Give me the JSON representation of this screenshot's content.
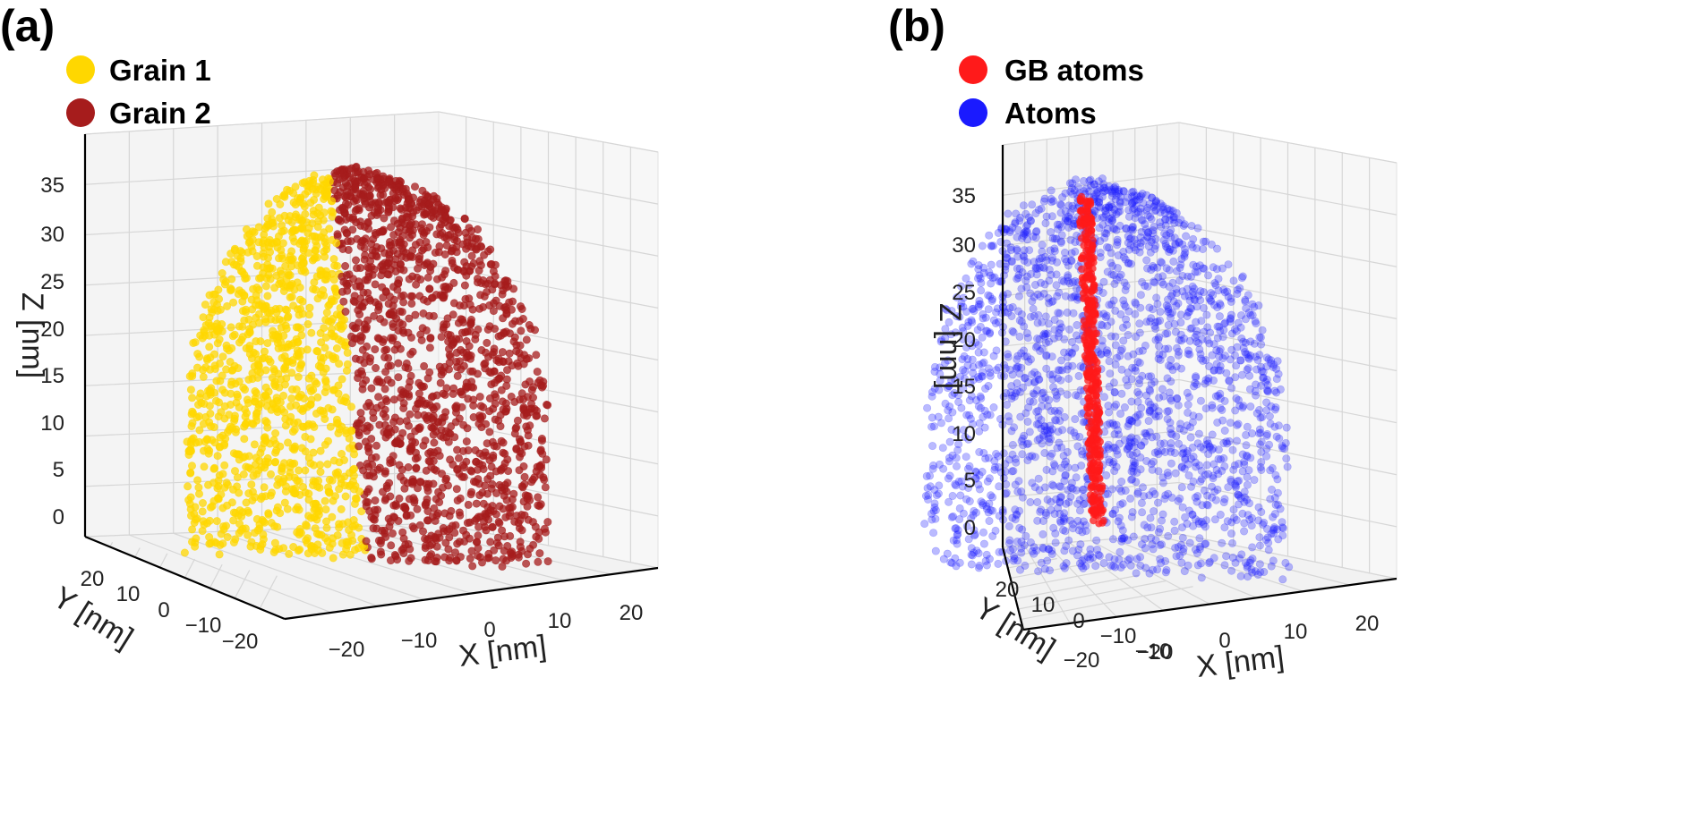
{
  "chart_data": [
    {
      "panel": "(a)",
      "type": "scatter",
      "subtype": "3d",
      "legend": [
        {
          "label": "Grain 1",
          "color": "#ffd700"
        },
        {
          "label": "Grain 2",
          "color": "#a61c1c"
        }
      ],
      "xlabel": "X [nm]",
      "ylabel": "Y [nm]",
      "zlabel": "Z [nm]",
      "xticks": [
        "−20",
        "−10",
        "0",
        "10",
        "20"
      ],
      "yticks": [
        "20",
        "10",
        "0",
        "−10",
        "−20"
      ],
      "zticks": [
        "0",
        "5",
        "10",
        "15",
        "20",
        "25",
        "30",
        "35"
      ],
      "xlim": [
        -25,
        25
      ],
      "ylim": [
        -25,
        25
      ],
      "zlim": [
        -3,
        38
      ],
      "grid": true,
      "legend_position": "top-left"
    },
    {
      "panel": "(b)",
      "type": "scatter",
      "subtype": "3d",
      "legend": [
        {
          "label": "GB atoms",
          "color": "#ff1a1a"
        },
        {
          "label": "Atoms",
          "color": "#1a1aff"
        }
      ],
      "xlabel": "X [nm]",
      "ylabel": "Y [nm]",
      "zlabel": "Z [nm]",
      "xticks": [
        "−20",
        "−10",
        "0",
        "10",
        "20"
      ],
      "yticks": [
        "20",
        "10",
        "0",
        "−10",
        "−20"
      ],
      "zticks": [
        "0",
        "5",
        "10",
        "15",
        "20",
        "25",
        "30",
        "35"
      ],
      "xlim": [
        -25,
        25
      ],
      "ylim": [
        -25,
        25
      ],
      "zlim": [
        -3,
        38
      ],
      "grid": true,
      "legend_position": "top-left"
    }
  ]
}
